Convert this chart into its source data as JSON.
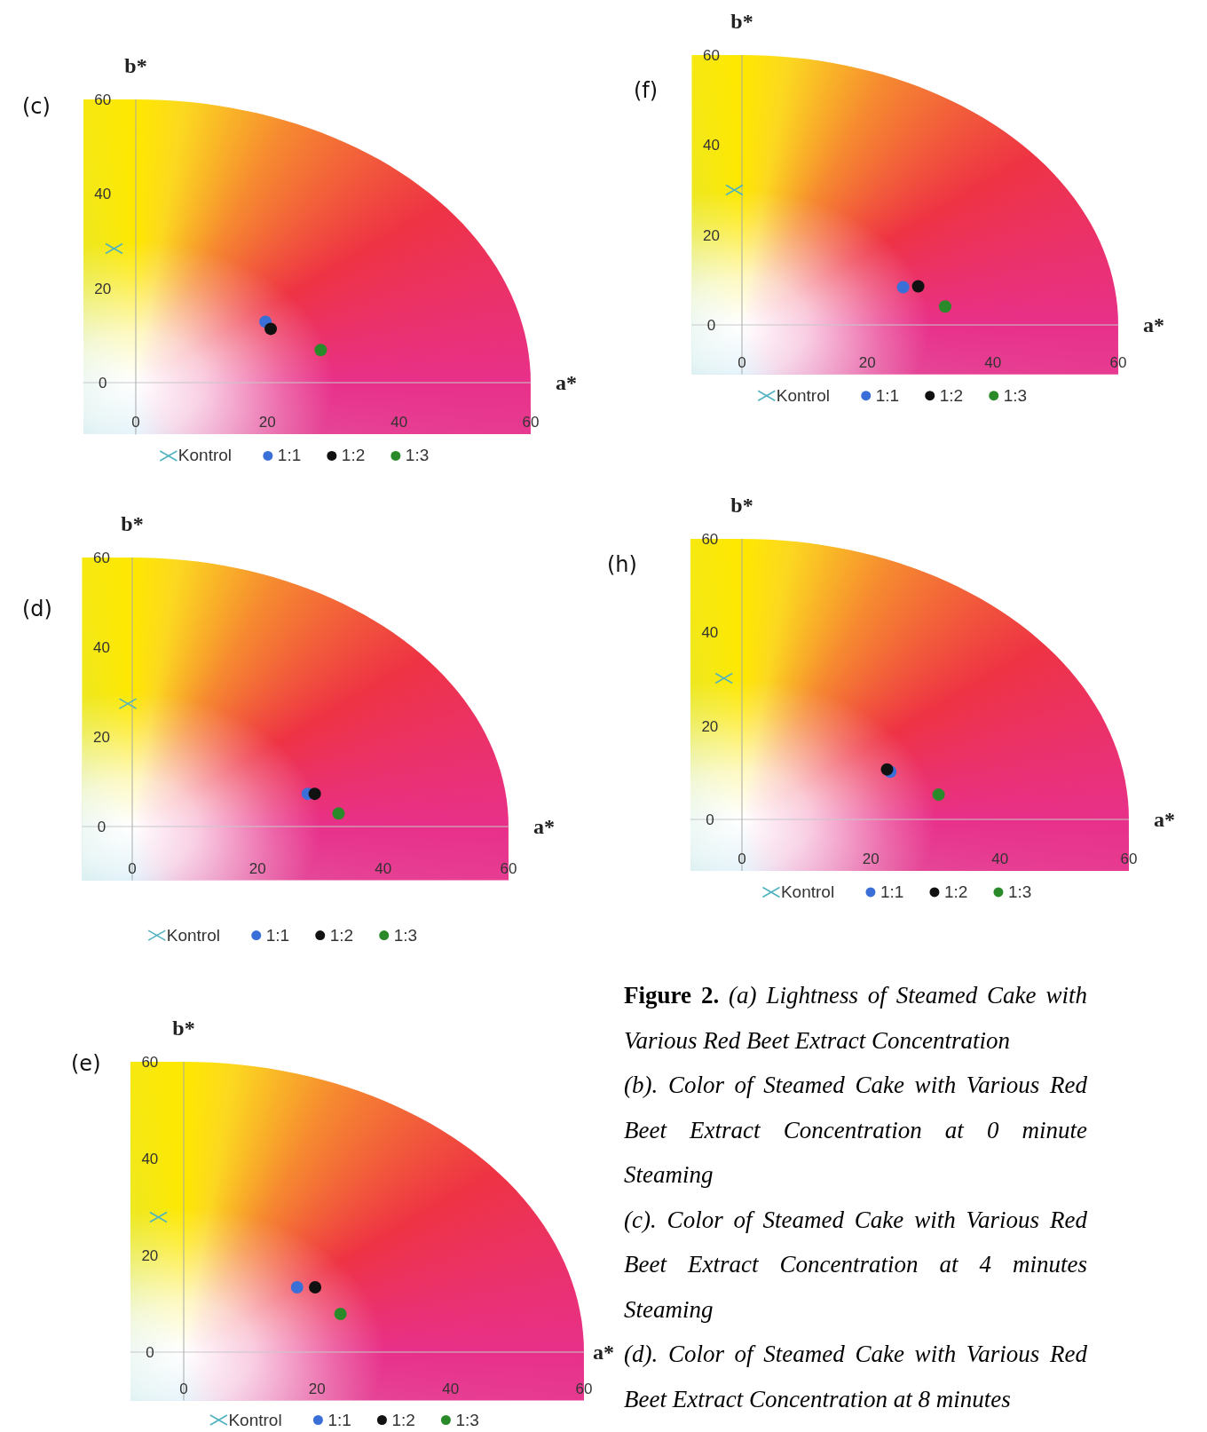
{
  "chart_data": [
    {
      "type": "scatter",
      "title": "(c)",
      "xlabel": "a*",
      "ylabel": "b*",
      "xlim": [
        -8,
        60
      ],
      "ylim": [
        -11,
        60
      ],
      "xticks": [
        0,
        20,
        40,
        60
      ],
      "yticks": [
        0,
        20,
        40,
        60
      ],
      "legend": "bottom",
      "series": [
        {
          "name": "Kontrol",
          "color": "#4fb3bf",
          "marker": "cross",
          "x": [
            -3.3
          ],
          "values": [
            28.4
          ]
        },
        {
          "name": "1:1",
          "color": "#3a6fd8",
          "marker": "circle",
          "x": [
            19.7
          ],
          "values": [
            12.9
          ]
        },
        {
          "name": "1:2",
          "color": "#111111",
          "marker": "circle",
          "x": [
            20.5
          ],
          "values": [
            11.4
          ]
        },
        {
          "name": "1:3",
          "color": "#2a8a2a",
          "marker": "circle",
          "x": [
            28.1
          ],
          "values": [
            6.9
          ]
        }
      ]
    },
    {
      "type": "scatter",
      "title": "(f)",
      "xlabel": "a*",
      "ylabel": "b*",
      "xlim": [
        -8,
        60
      ],
      "ylim": [
        -11,
        60
      ],
      "xticks": [
        0,
        20,
        40,
        60
      ],
      "yticks": [
        0,
        20,
        40,
        60
      ],
      "legend": "bottom",
      "series": [
        {
          "name": "Kontrol",
          "color": "#4fb3bf",
          "marker": "cross",
          "x": [
            -1.2
          ],
          "values": [
            30.0
          ]
        },
        {
          "name": "1:1",
          "color": "#3a6fd8",
          "marker": "circle",
          "x": [
            25.7
          ],
          "values": [
            8.4
          ]
        },
        {
          "name": "1:2",
          "color": "#111111",
          "marker": "circle",
          "x": [
            28.1
          ],
          "values": [
            8.6
          ]
        },
        {
          "name": "1:3",
          "color": "#2a8a2a",
          "marker": "circle",
          "x": [
            32.4
          ],
          "values": [
            4.1
          ]
        }
      ]
    },
    {
      "type": "scatter",
      "title": "(d)",
      "xlabel": "a*",
      "ylabel": "b*",
      "xlim": [
        -8,
        60
      ],
      "ylim": [
        -12,
        60
      ],
      "xticks": [
        0,
        20,
        40,
        60
      ],
      "yticks": [
        0,
        20,
        40,
        60
      ],
      "legend": "bottom",
      "series": [
        {
          "name": "Kontrol",
          "color": "#4fb3bf",
          "marker": "cross",
          "x": [
            -0.7
          ],
          "values": [
            27.4
          ]
        },
        {
          "name": "1:1",
          "color": "#3a6fd8",
          "marker": "circle",
          "x": [
            28.0
          ],
          "values": [
            7.3
          ]
        },
        {
          "name": "1:2",
          "color": "#111111",
          "marker": "circle",
          "x": [
            29.1
          ],
          "values": [
            7.3
          ]
        },
        {
          "name": "1:3",
          "color": "#2a8a2a",
          "marker": "circle",
          "x": [
            32.9
          ],
          "values": [
            2.9
          ]
        }
      ]
    },
    {
      "type": "scatter",
      "title": "(h)",
      "xlabel": "a*",
      "ylabel": "b*",
      "xlim": [
        -8,
        60
      ],
      "ylim": [
        -11,
        60
      ],
      "xticks": [
        0,
        20,
        40,
        60
      ],
      "yticks": [
        0,
        20,
        40,
        60
      ],
      "legend": "bottom",
      "series": [
        {
          "name": "Kontrol",
          "color": "#4fb3bf",
          "marker": "cross",
          "x": [
            -2.8
          ],
          "values": [
            30.2
          ]
        },
        {
          "name": "1:1",
          "color": "#3a6fd8",
          "marker": "circle",
          "x": [
            23.0
          ],
          "values": [
            10.2
          ]
        },
        {
          "name": "1:2",
          "color": "#111111",
          "marker": "circle",
          "x": [
            22.5
          ],
          "values": [
            10.7
          ]
        },
        {
          "name": "1:3",
          "color": "#2a8a2a",
          "marker": "circle",
          "x": [
            30.5
          ],
          "values": [
            5.3
          ]
        }
      ]
    },
    {
      "type": "scatter",
      "title": "(e)",
      "xlabel": "a*",
      "ylabel": "b*",
      "xlim": [
        -8,
        60
      ],
      "ylim": [
        -10,
        60
      ],
      "xticks": [
        0,
        20,
        40,
        60
      ],
      "yticks": [
        0,
        20,
        40,
        60
      ],
      "legend": "bottom",
      "series": [
        {
          "name": "Kontrol",
          "color": "#4fb3bf",
          "marker": "cross",
          "x": [
            -3.8
          ],
          "values": [
            27.9
          ]
        },
        {
          "name": "1:1",
          "color": "#3a6fd8",
          "marker": "circle",
          "x": [
            17.0
          ],
          "values": [
            13.4
          ]
        },
        {
          "name": "1:2",
          "color": "#111111",
          "marker": "circle",
          "x": [
            19.7
          ],
          "values": [
            13.4
          ]
        },
        {
          "name": "1:3",
          "color": "#2a8a2a",
          "marker": "circle",
          "x": [
            23.5
          ],
          "values": [
            7.9
          ]
        }
      ],
      "annotations": [
        "Figure 2.",
        "(a) Lightness of Steamed Cake with Various Red Beet Extract Concentration",
        "(b). Color of Steamed Cake with Various Red Beet Extract Concentration at 0 minute Steaming",
        "(c). Color of Steamed Cake with Various Red Beet Extract Concentration at 4 minutes Steaming",
        "(d). Color of Steamed Cake with Various Red Beet Extract Concentration at 8 minutes"
      ]
    }
  ]
}
